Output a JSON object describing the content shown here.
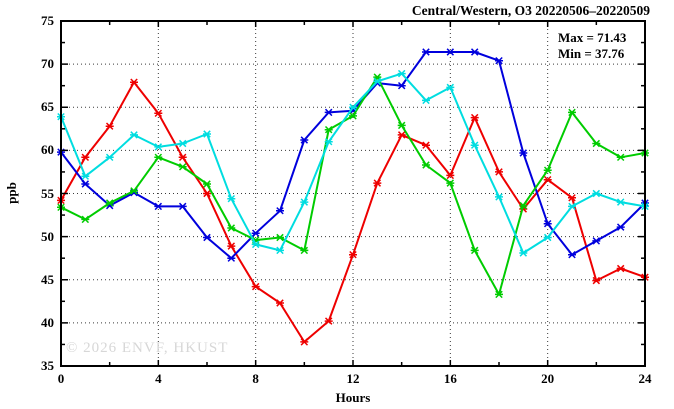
{
  "title": "Central/Western, O3 20220506–20220509",
  "annotations": {
    "max_label": "Max = 71.43",
    "min_label": "Min = 37.76"
  },
  "watermark": "© 2026 ENVF, HKUST",
  "colors": {
    "axis": "#000000",
    "grid": "#3a3a3a",
    "red_series": "#ee0000",
    "blue_series": "#0000dd",
    "green_series": "#00cc00",
    "cyan_series": "#00dde0",
    "watermark": "#d7d7d7"
  },
  "chart_data": {
    "type": "line",
    "title": "Central/Western, O3 20220506–20220509",
    "xlabel": "Hours",
    "ylabel": "ppb",
    "xlim": [
      0,
      24
    ],
    "ylim": [
      35,
      75
    ],
    "x": [
      0,
      1,
      2,
      3,
      4,
      5,
      6,
      7,
      8,
      9,
      10,
      11,
      12,
      13,
      14,
      15,
      16,
      17,
      18,
      19,
      20,
      21,
      22,
      23,
      24
    ],
    "series": [
      {
        "name": "red",
        "color": "#ee0000",
        "values": [
          54.2,
          59.2,
          62.8,
          67.9,
          64.3,
          59.2,
          55.0,
          48.9,
          44.2,
          42.3,
          37.8,
          40.2,
          47.9,
          56.2,
          61.8,
          60.6,
          57.1,
          63.8,
          57.5,
          53.2,
          56.6,
          54.5,
          44.9,
          46.3,
          45.3
        ]
      },
      {
        "name": "blue",
        "color": "#0000dd",
        "values": [
          59.8,
          56.1,
          53.6,
          55.1,
          53.5,
          53.5,
          49.9,
          47.5,
          50.4,
          53.0,
          61.2,
          64.4,
          64.6,
          67.8,
          67.5,
          71.4,
          71.4,
          71.4,
          70.4,
          59.7,
          51.5,
          47.9,
          49.5,
          51.1,
          53.9
        ]
      },
      {
        "name": "green",
        "color": "#00cc00",
        "values": [
          53.4,
          52.0,
          53.9,
          55.3,
          59.2,
          58.1,
          56.1,
          51.0,
          49.6,
          49.9,
          48.4,
          62.4,
          64.0,
          68.5,
          62.9,
          58.3,
          56.2,
          48.4,
          43.3,
          53.6,
          57.7,
          64.4,
          60.8,
          59.2,
          59.7
        ]
      },
      {
        "name": "cyan",
        "color": "#00dde0",
        "values": [
          63.9,
          57.0,
          59.2,
          61.8,
          60.4,
          60.8,
          61.9,
          54.4,
          49.1,
          48.4,
          54.0,
          61.0,
          65.0,
          68.0,
          68.9,
          65.8,
          67.3,
          60.6,
          54.6,
          48.1,
          49.9,
          53.5,
          55.0,
          54.0,
          53.5
        ]
      }
    ],
    "xticks_labeled": [
      0,
      4,
      8,
      12,
      16,
      20,
      24
    ],
    "xticks_minor_step": 2,
    "yticks_labeled": [
      35,
      40,
      45,
      50,
      55,
      60,
      65,
      70,
      75
    ],
    "yticks_minor_step": 2.5,
    "grid_x": [
      4,
      8,
      12,
      16,
      20
    ],
    "grid_y": [
      40,
      45,
      50,
      55,
      60,
      65,
      70
    ],
    "legend_position": "none",
    "grid": true,
    "max": 71.43,
    "min": 37.76
  }
}
